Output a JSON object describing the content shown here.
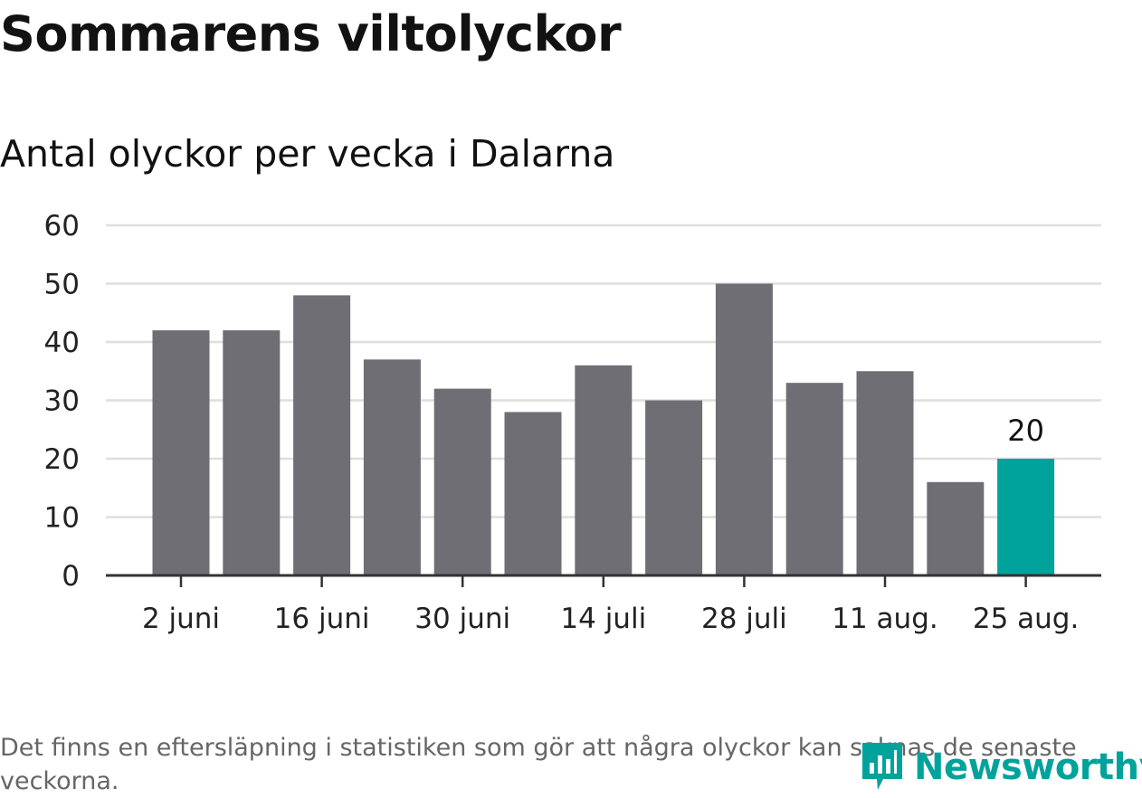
{
  "title": "Sommarens viltolyckor",
  "subtitle": "Antal olyckor per vecka i Dalarna",
  "footnote": "Det finns en eftersläpning i statistiken som gör att några olyckor kan saknas de senaste veckorna.",
  "logo": {
    "text": "Newsworthy",
    "icon": "bar-chart-speech-icon"
  },
  "colors": {
    "bar": "#6f6e75",
    "highlight": "#00a39b",
    "grid": "#dedede",
    "axis": "#333333"
  },
  "chart_data": {
    "type": "bar",
    "title": "Sommarens viltolyckor",
    "subtitle": "Antal olyckor per vecka i Dalarna",
    "values": [
      42,
      42,
      48,
      37,
      32,
      28,
      36,
      30,
      50,
      33,
      35,
      16,
      20
    ],
    "highlight_index": 12,
    "data_labels": [
      {
        "index": 12,
        "text": "20"
      }
    ],
    "x_ticks": [
      {
        "index": 0,
        "label": "2 juni"
      },
      {
        "index": 2,
        "label": "16 juni"
      },
      {
        "index": 4,
        "label": "30 juni"
      },
      {
        "index": 6,
        "label": "14 juli"
      },
      {
        "index": 8,
        "label": "28 juli"
      },
      {
        "index": 10,
        "label": "11 aug."
      },
      {
        "index": 12,
        "label": "25 aug."
      }
    ],
    "y_ticks": [
      0,
      10,
      20,
      30,
      40,
      50,
      60
    ],
    "ylim": [
      0,
      60
    ],
    "grid": true
  }
}
